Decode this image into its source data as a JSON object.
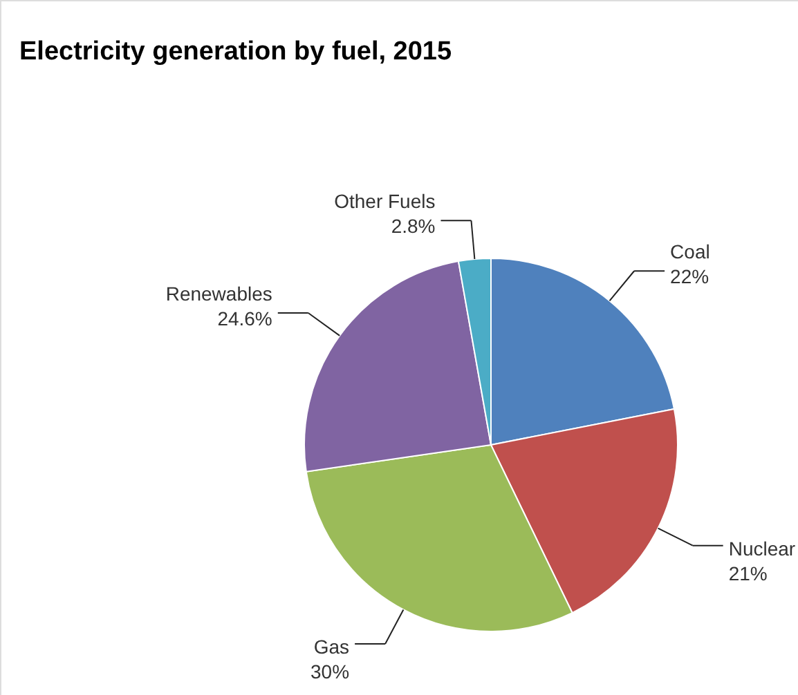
{
  "chart_data": {
    "type": "pie",
    "title": "Electricity generation by fuel, 2015",
    "categories": [
      "Coal",
      "Nuclear",
      "Gas",
      "Renewables",
      "Other Fuels"
    ],
    "values": [
      22,
      21,
      30,
      24.6,
      2.8
    ],
    "value_labels": [
      "22%",
      "21%",
      "30%",
      "24.6%",
      "2.8%"
    ],
    "colors": [
      "#4f81bd",
      "#c0504d",
      "#9bbb59",
      "#8064a2",
      "#4bacc6"
    ]
  }
}
